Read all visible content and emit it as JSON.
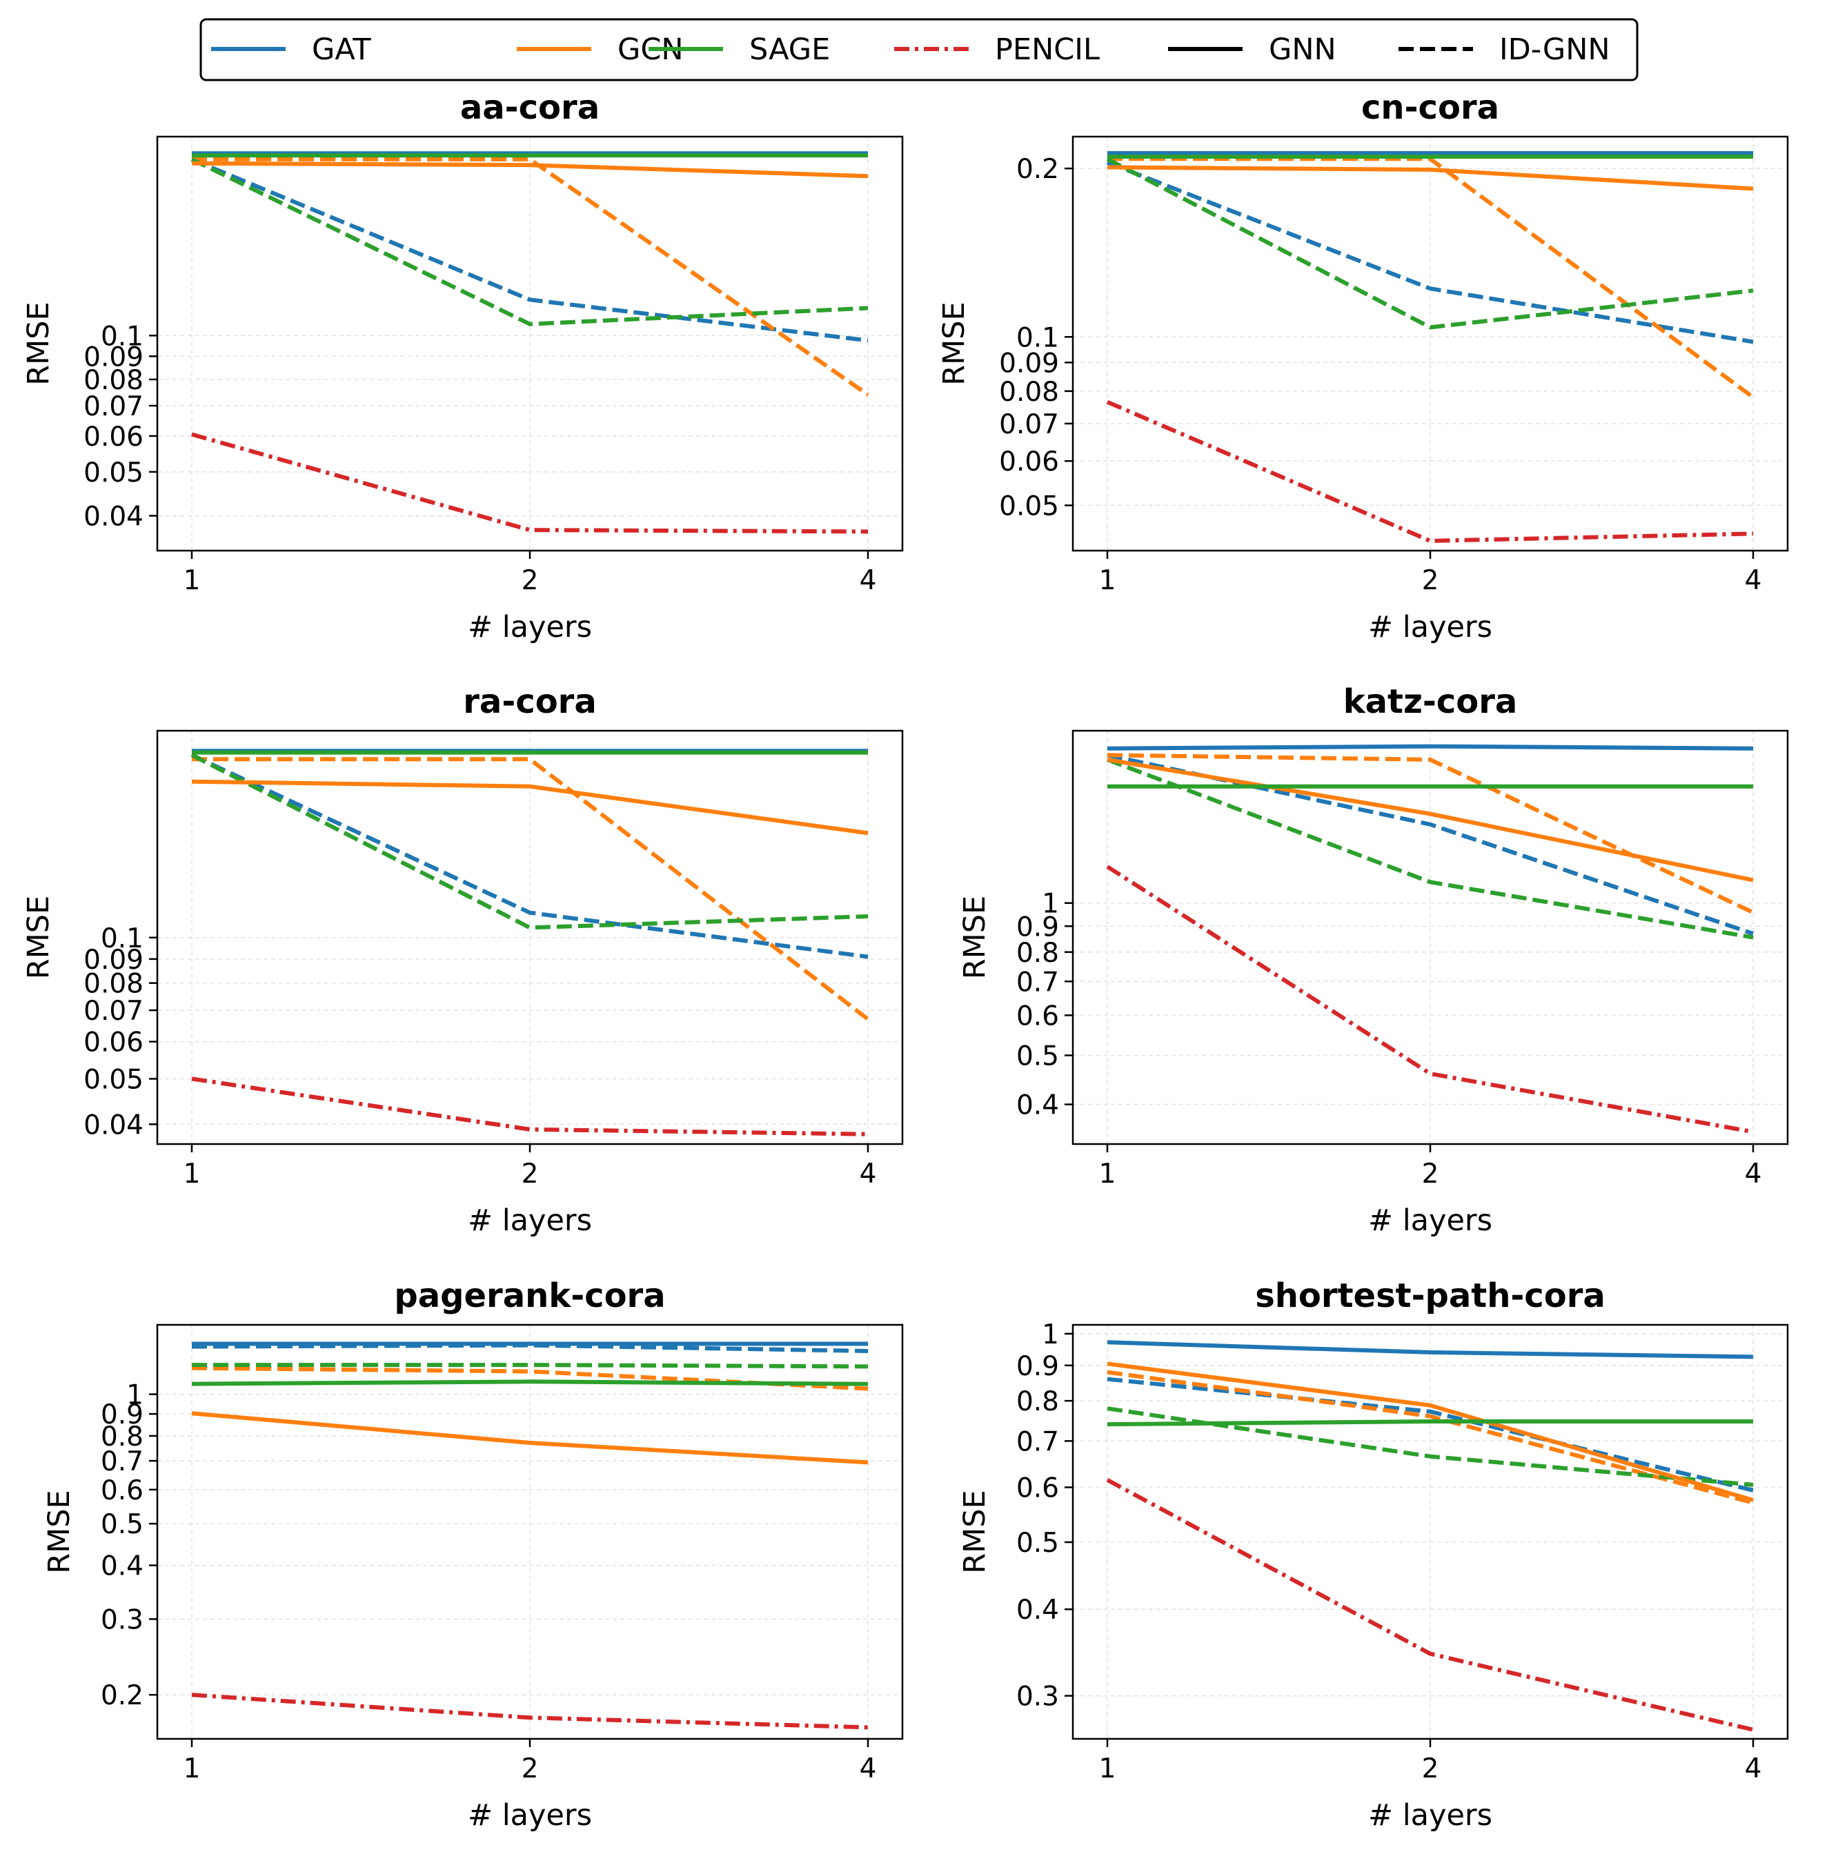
{
  "legend": {
    "entries": [
      {
        "label": "GAT",
        "color": "#1f77b4",
        "style": "solid"
      },
      {
        "label": "GCN",
        "color": "#ff7f0e",
        "style": "solid"
      },
      {
        "label": "SAGE",
        "color": "#2ca02c",
        "style": "solid"
      },
      {
        "label": "PENCIL",
        "color": "#d62728",
        "style": "dashdot"
      },
      {
        "label": "GNN",
        "color": "#000000",
        "style": "solid"
      },
      {
        "label": "ID-GNN",
        "color": "#000000",
        "style": "dashed"
      }
    ]
  },
  "chart_data": [
    {
      "type": "line",
      "title": "aa-cora",
      "xlabel": "# layers",
      "ylabel": "RMSE",
      "yscale": "log",
      "ylim": [
        0.0335,
        0.275
      ],
      "x": [
        1,
        2,
        4
      ],
      "xticks": [
        "1",
        "2",
        "4"
      ],
      "yticks": [
        {
          "v": 0.04,
          "label": "0.04"
        },
        {
          "v": 0.05,
          "label": "0.05"
        },
        {
          "v": 0.06,
          "label": "0.06"
        },
        {
          "v": 0.07,
          "label": "0.07"
        },
        {
          "v": 0.08,
          "label": "0.08"
        },
        {
          "v": 0.09,
          "label": "0.09"
        },
        {
          "v": 0.1,
          "label": "0.1"
        }
      ],
      "series": [
        {
          "model": "GAT",
          "variant": "GNN",
          "values": [
            0.2525,
            0.2525,
            0.2525
          ]
        },
        {
          "model": "GCN",
          "variant": "GNN",
          "values": [
            0.24,
            0.238,
            0.225
          ]
        },
        {
          "model": "SAGE",
          "variant": "GNN",
          "values": [
            0.25,
            0.25,
            0.25
          ]
        },
        {
          "model": "GAT",
          "variant": "ID-GNN",
          "values": [
            0.245,
            0.12,
            0.0975
          ]
        },
        {
          "model": "GCN",
          "variant": "ID-GNN",
          "values": [
            0.245,
            0.245,
            0.074
          ]
        },
        {
          "model": "SAGE",
          "variant": "ID-GNN",
          "values": [
            0.245,
            0.106,
            0.115
          ]
        },
        {
          "model": "PENCIL",
          "variant": "",
          "values": [
            0.0605,
            0.0372,
            0.0369
          ]
        }
      ]
    },
    {
      "type": "line",
      "title": "cn-cora",
      "xlabel": "# layers",
      "ylabel": "RMSE",
      "yscale": "log",
      "ylim": [
        0.0415,
        0.228
      ],
      "x": [
        1,
        2,
        4
      ],
      "xticks": [
        "1",
        "2",
        "4"
      ],
      "yticks": [
        {
          "v": 0.05,
          "label": "0.05"
        },
        {
          "v": 0.06,
          "label": "0.06"
        },
        {
          "v": 0.07,
          "label": "0.07"
        },
        {
          "v": 0.08,
          "label": "0.08"
        },
        {
          "v": 0.09,
          "label": "0.09"
        },
        {
          "v": 0.1,
          "label": "0.1"
        },
        {
          "v": 0.2,
          "label": "0.2"
        }
      ],
      "series": [
        {
          "model": "GAT",
          "variant": "GNN",
          "values": [
            0.213,
            0.213,
            0.213
          ]
        },
        {
          "model": "GCN",
          "variant": "GNN",
          "values": [
            0.201,
            0.199,
            0.184
          ]
        },
        {
          "model": "SAGE",
          "variant": "GNN",
          "values": [
            0.21,
            0.21,
            0.21
          ]
        },
        {
          "model": "GAT",
          "variant": "ID-GNN",
          "values": [
            0.205,
            0.122,
            0.098
          ]
        },
        {
          "model": "GCN",
          "variant": "ID-GNN",
          "values": [
            0.208,
            0.208,
            0.078
          ]
        },
        {
          "model": "SAGE",
          "variant": "ID-GNN",
          "values": [
            0.208,
            0.104,
            0.121
          ]
        },
        {
          "model": "PENCIL",
          "variant": "",
          "values": [
            0.0765,
            0.0432,
            0.0445
          ]
        }
      ]
    },
    {
      "type": "line",
      "title": "ra-cora",
      "xlabel": "# layers",
      "ylabel": "RMSE",
      "yscale": "log",
      "ylim": [
        0.0363,
        0.276
      ],
      "x": [
        1,
        2,
        4
      ],
      "xticks": [
        "1",
        "2",
        "4"
      ],
      "yticks": [
        {
          "v": 0.04,
          "label": "0.04"
        },
        {
          "v": 0.05,
          "label": "0.05"
        },
        {
          "v": 0.06,
          "label": "0.06"
        },
        {
          "v": 0.07,
          "label": "0.07"
        },
        {
          "v": 0.08,
          "label": "0.08"
        },
        {
          "v": 0.09,
          "label": "0.09"
        },
        {
          "v": 0.1,
          "label": "0.1"
        }
      ],
      "series": [
        {
          "model": "GAT",
          "variant": "GNN",
          "values": [
            0.25,
            0.25,
            0.25
          ]
        },
        {
          "model": "GCN",
          "variant": "GNN",
          "values": [
            0.215,
            0.21,
            0.167
          ]
        },
        {
          "model": "SAGE",
          "variant": "GNN",
          "values": [
            0.248,
            0.248,
            0.248
          ]
        },
        {
          "model": "GAT",
          "variant": "ID-GNN",
          "values": [
            0.245,
            0.113,
            0.091
          ]
        },
        {
          "model": "GCN",
          "variant": "ID-GNN",
          "values": [
            0.24,
            0.24,
            0.067
          ]
        },
        {
          "model": "SAGE",
          "variant": "ID-GNN",
          "values": [
            0.245,
            0.105,
            0.111
          ]
        },
        {
          "model": "PENCIL",
          "variant": "",
          "values": [
            0.05,
            0.039,
            0.0381
          ]
        }
      ]
    },
    {
      "type": "line",
      "title": "katz-cora",
      "xlabel": "# layers",
      "ylabel": "RMSE",
      "yscale": "log",
      "ylim": [
        0.334,
        2.19
      ],
      "x": [
        1,
        2,
        4
      ],
      "xticks": [
        "1",
        "2",
        "4"
      ],
      "yticks": [
        {
          "v": 0.4,
          "label": "0.4"
        },
        {
          "v": 0.5,
          "label": "0.5"
        },
        {
          "v": 0.6,
          "label": "0.6"
        },
        {
          "v": 0.7,
          "label": "0.7"
        },
        {
          "v": 0.8,
          "label": "0.8"
        },
        {
          "v": 0.9,
          "label": "0.9"
        },
        {
          "v": 1,
          "label": "1"
        }
      ],
      "series": [
        {
          "model": "GAT",
          "variant": "GNN",
          "values": [
            2.02,
            2.04,
            2.02
          ]
        },
        {
          "model": "GCN",
          "variant": "GNN",
          "values": [
            1.92,
            1.5,
            1.11
          ]
        },
        {
          "model": "SAGE",
          "variant": "GNN",
          "values": [
            1.7,
            1.7,
            1.7
          ]
        },
        {
          "model": "GAT",
          "variant": "ID-GNN",
          "values": [
            1.96,
            1.43,
            0.87
          ]
        },
        {
          "model": "GCN",
          "variant": "ID-GNN",
          "values": [
            1.96,
            1.92,
            0.958
          ]
        },
        {
          "model": "SAGE",
          "variant": "ID-GNN",
          "values": [
            1.92,
            1.1,
            0.855
          ]
        },
        {
          "model": "PENCIL",
          "variant": "",
          "values": [
            1.18,
            0.46,
            0.353
          ]
        }
      ]
    },
    {
      "type": "line",
      "title": "pagerank-cora",
      "xlabel": "# layers",
      "ylabel": "RMSE",
      "yscale": "log",
      "ylim": [
        0.158,
        1.45
      ],
      "x": [
        1,
        2,
        4
      ],
      "xticks": [
        "1",
        "2",
        "4"
      ],
      "yticks": [
        {
          "v": 0.2,
          "label": "0.2"
        },
        {
          "v": 0.3,
          "label": "0.3"
        },
        {
          "v": 0.4,
          "label": "0.4"
        },
        {
          "v": 0.5,
          "label": "0.5"
        },
        {
          "v": 0.6,
          "label": "0.6"
        },
        {
          "v": 0.7,
          "label": "0.7"
        },
        {
          "v": 0.8,
          "label": "0.8"
        },
        {
          "v": 0.9,
          "label": "0.9"
        },
        {
          "v": 1,
          "label": "1"
        }
      ],
      "series": [
        {
          "model": "GAT",
          "variant": "GNN",
          "values": [
            1.31,
            1.31,
            1.31
          ]
        },
        {
          "model": "GCN",
          "variant": "GNN",
          "values": [
            0.903,
            0.771,
            0.694
          ]
        },
        {
          "model": "SAGE",
          "variant": "GNN",
          "values": [
            1.057,
            1.07,
            1.056
          ]
        },
        {
          "model": "GAT",
          "variant": "ID-GNN",
          "values": [
            1.29,
            1.3,
            1.26
          ]
        },
        {
          "model": "GCN",
          "variant": "ID-GNN",
          "values": [
            1.15,
            1.13,
            1.03
          ]
        },
        {
          "model": "SAGE",
          "variant": "ID-GNN",
          "values": [
            1.17,
            1.17,
            1.16
          ]
        },
        {
          "model": "PENCIL",
          "variant": "",
          "values": [
            0.2,
            0.177,
            0.168
          ]
        }
      ]
    },
    {
      "type": "line",
      "title": "shortest-path-cora",
      "xlabel": "# layers",
      "ylabel": "RMSE",
      "yscale": "log",
      "ylim": [
        0.26,
        1.03
      ],
      "x": [
        1,
        2,
        4
      ],
      "xticks": [
        "1",
        "2",
        "4"
      ],
      "yticks": [
        {
          "v": 0.3,
          "label": "0.3"
        },
        {
          "v": 0.4,
          "label": "0.4"
        },
        {
          "v": 0.5,
          "label": "0.5"
        },
        {
          "v": 0.6,
          "label": "0.6"
        },
        {
          "v": 0.7,
          "label": "0.7"
        },
        {
          "v": 0.8,
          "label": "0.8"
        },
        {
          "v": 0.9,
          "label": "0.9"
        },
        {
          "v": 1,
          "label": "1"
        }
      ],
      "series": [
        {
          "model": "GAT",
          "variant": "GNN",
          "values": [
            0.972,
            0.94,
            0.926
          ]
        },
        {
          "model": "GCN",
          "variant": "GNN",
          "values": [
            0.905,
            0.788,
            0.575
          ]
        },
        {
          "model": "SAGE",
          "variant": "GNN",
          "values": [
            0.74,
            0.747,
            0.747
          ]
        },
        {
          "model": "GAT",
          "variant": "ID-GNN",
          "values": [
            0.86,
            0.772,
            0.594
          ]
        },
        {
          "model": "GCN",
          "variant": "ID-GNN",
          "values": [
            0.88,
            0.76,
            0.57
          ]
        },
        {
          "model": "SAGE",
          "variant": "ID-GNN",
          "values": [
            0.78,
            0.665,
            0.605
          ]
        },
        {
          "model": "PENCIL",
          "variant": "",
          "values": [
            0.615,
            0.345,
            0.268
          ]
        }
      ]
    }
  ]
}
